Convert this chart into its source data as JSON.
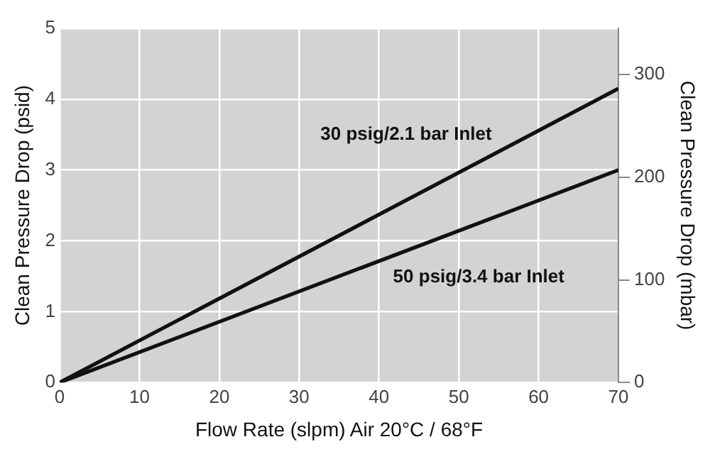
{
  "chart_data": {
    "type": "line",
    "xlabel": "Flow Rate (slpm) Air 20°C / 68°F",
    "ylabel": "Clean Pressure Drop (psid)",
    "y2label": "Clean Pressure Drop (mbar)",
    "x": [
      0,
      70
    ],
    "series": [
      {
        "name": "30 psig/2.1 bar Inlet",
        "color": "#111111",
        "values": [
          0,
          4.15
        ]
      },
      {
        "name": "50 psig/3.4 bar Inlet",
        "color": "#111111",
        "values": [
          0,
          3.0
        ]
      }
    ],
    "xlim": [
      0,
      70
    ],
    "xticks": [
      0,
      10,
      20,
      30,
      40,
      50,
      60,
      70
    ],
    "ylim": [
      0,
      5
    ],
    "yticks": [
      0,
      1,
      2,
      3,
      4,
      5
    ],
    "y2lim": [
      0,
      345
    ],
    "y2ticks": [
      0,
      100,
      200,
      300
    ],
    "grid": true,
    "legend": false,
    "marker": "none",
    "line_style": "solid"
  }
}
